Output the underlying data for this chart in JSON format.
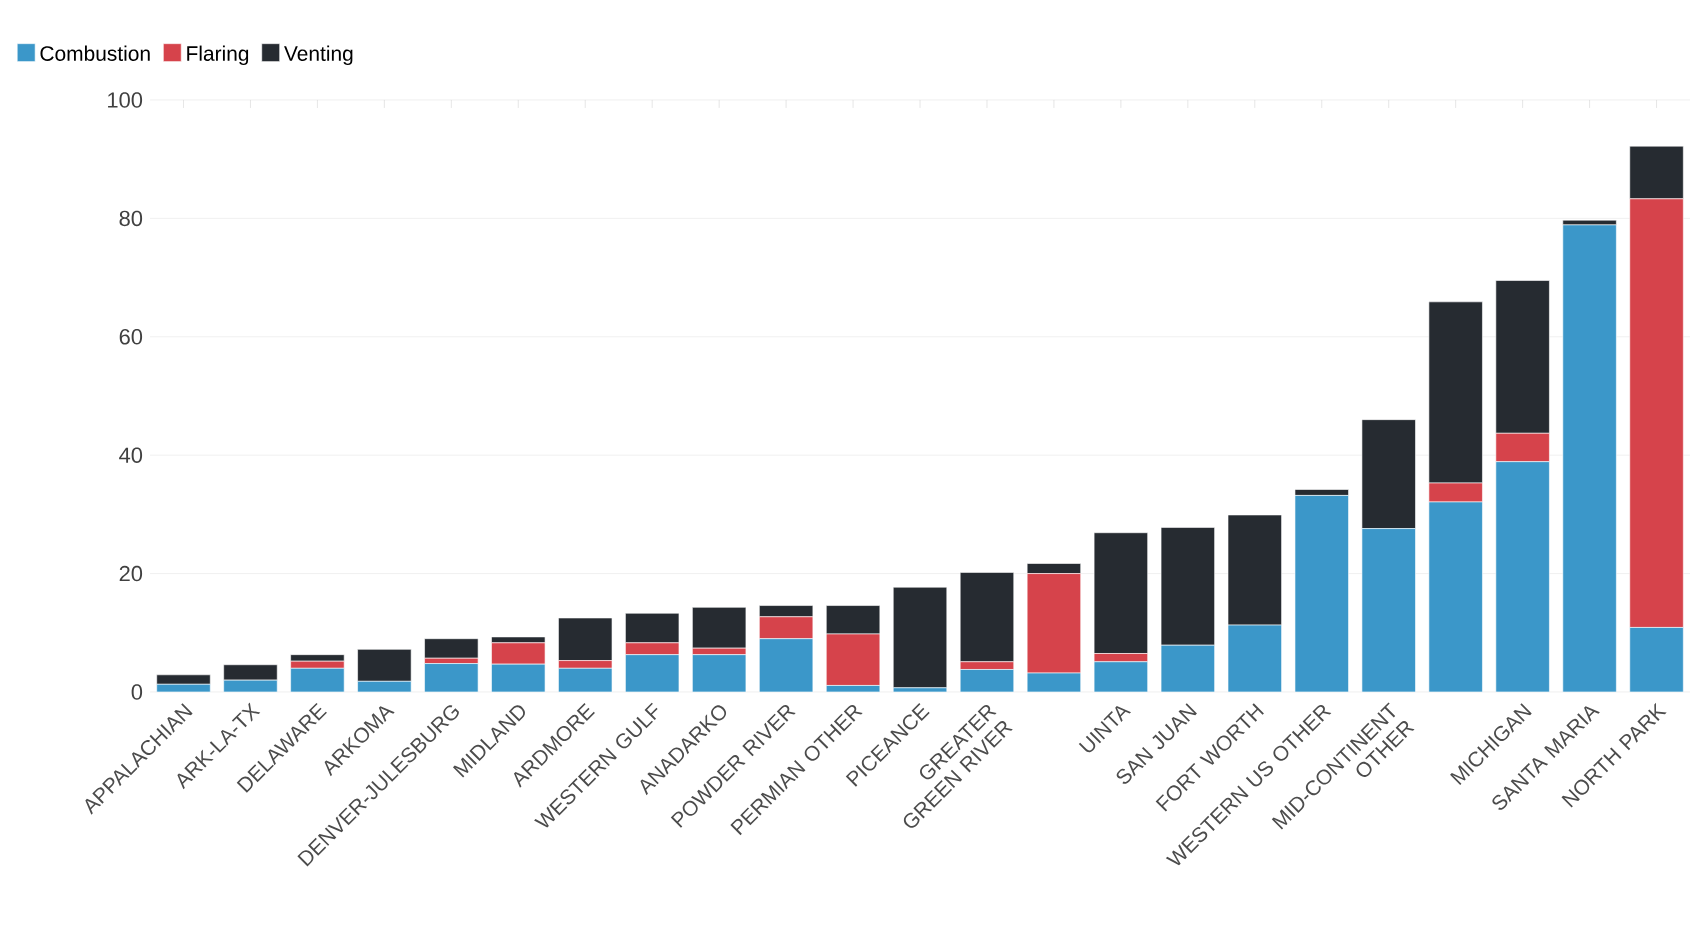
{
  "chart_data": {
    "type": "bar",
    "stacked": true,
    "categories": [
      "APPALACHIAN",
      "ARK-LA-TX",
      "DELAWARE",
      "ARKOMA",
      "DENVER-JULESBURG",
      "MIDLAND",
      "ARDMORE",
      "WESTERN GULF",
      "ANADARKO",
      "POWDER RIVER",
      "PERMIAN OTHER",
      "PICEANCE",
      "GREATER GREEN RIVER",
      null,
      "UINTA",
      "SAN JUAN",
      "FORT WORTH",
      "WESTERN US OTHER",
      "MID-CONTINENT OTHER",
      null,
      "MICHIGAN",
      "SANTA MARIA",
      "NORTH PARK"
    ],
    "series": [
      {
        "name": "Combustion",
        "color": "#3b97c9",
        "values": [
          1.3,
          2.0,
          4.0,
          1.8,
          4.8,
          4.7,
          4.0,
          6.3,
          6.3,
          9.0,
          1.1,
          0.7,
          3.8,
          3.2,
          5.1,
          7.9,
          11.3,
          33.2,
          27.6,
          32.1,
          38.9,
          78.9,
          10.9
        ]
      },
      {
        "name": "Flaring",
        "color": "#d6434b",
        "values": [
          0,
          0,
          1.2,
          0,
          0.9,
          3.6,
          1.3,
          2.0,
          1.1,
          3.7,
          8.7,
          0,
          1.3,
          16.8,
          1.4,
          0,
          0,
          0,
          0,
          3.2,
          4.8,
          0,
          72.4
        ]
      },
      {
        "name": "Venting",
        "color": "#262b31",
        "values": [
          1.6,
          2.6,
          1.1,
          5.4,
          3.3,
          1.0,
          7.2,
          5.0,
          6.9,
          1.9,
          4.8,
          17.0,
          15.1,
          1.7,
          20.4,
          19.9,
          18.6,
          1.0,
          18.4,
          30.6,
          25.8,
          0.8,
          8.9
        ]
      }
    ],
    "ylim": [
      0,
      100
    ],
    "yticks": [
      0,
      20,
      40,
      60,
      80,
      100
    ],
    "grid": "y",
    "legend": "top left"
  }
}
